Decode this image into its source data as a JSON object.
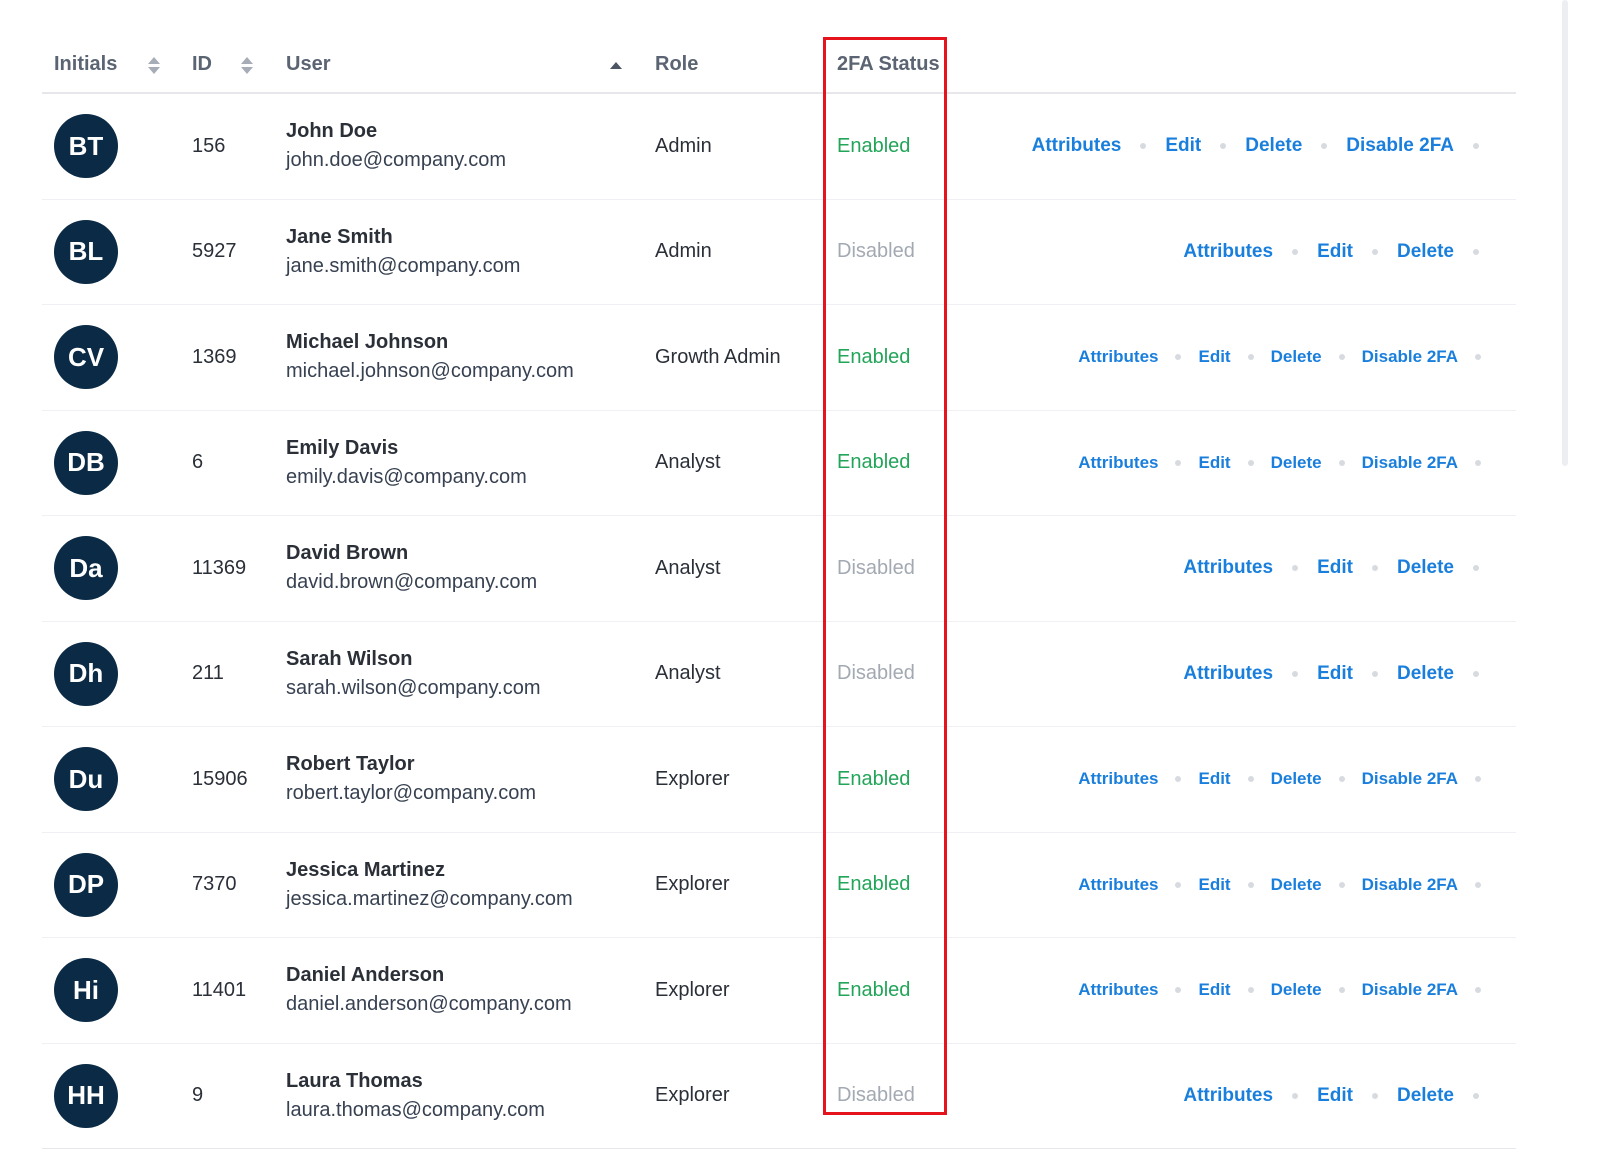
{
  "columns": {
    "initials": "Initials",
    "id": "ID",
    "user": "User",
    "role": "Role",
    "status": "2FA Status"
  },
  "action_labels": {
    "attributes": "Attributes",
    "edit": "Edit",
    "delete": "Delete",
    "disable_2fa": "Disable 2FA"
  },
  "status_colors": {
    "enabled": "#22a559",
    "disabled": "#a3a9b2"
  },
  "accent_color": "#1a7fdc",
  "avatar_color": "#0b2a45",
  "highlight_color": "#e5131b",
  "rows": [
    {
      "initials": "BT",
      "id": "156",
      "name": "John Doe",
      "email": "john.doe@company.com",
      "role": "Admin",
      "status": "Enabled"
    },
    {
      "initials": "BL",
      "id": "5927",
      "name": "Jane Smith",
      "email": "jane.smith@company.com",
      "role": "Admin",
      "status": "Disabled"
    },
    {
      "initials": "CV",
      "id": "1369",
      "name": "Michael Johnson",
      "email": "michael.johnson@company.com",
      "role": "Growth Admin",
      "status": "Enabled"
    },
    {
      "initials": "DB",
      "id": "6",
      "name": "Emily Davis",
      "email": "emily.davis@company.com",
      "role": "Analyst",
      "status": "Enabled"
    },
    {
      "initials": "Da",
      "id": "11369",
      "name": "David Brown",
      "email": "david.brown@company.com",
      "role": "Analyst",
      "status": "Disabled"
    },
    {
      "initials": "Dh",
      "id": "211",
      "name": "Sarah Wilson",
      "email": "sarah.wilson@company.com",
      "role": "Analyst",
      "status": "Disabled"
    },
    {
      "initials": "Du",
      "id": "15906",
      "name": "Robert Taylor",
      "email": "robert.taylor@company.com",
      "role": "Explorer",
      "status": "Enabled"
    },
    {
      "initials": "DP",
      "id": "7370",
      "name": "Jessica Martinez",
      "email": "jessica.martinez@company.com",
      "role": "Explorer",
      "status": "Enabled"
    },
    {
      "initials": "Hi",
      "id": "11401",
      "name": "Daniel Anderson",
      "email": "daniel.anderson@company.com",
      "role": "Explorer",
      "status": "Enabled"
    },
    {
      "initials": "HH",
      "id": "9",
      "name": "Laura Thomas",
      "email": "laura.thomas@company.com",
      "role": "Explorer",
      "status": "Disabled"
    }
  ]
}
